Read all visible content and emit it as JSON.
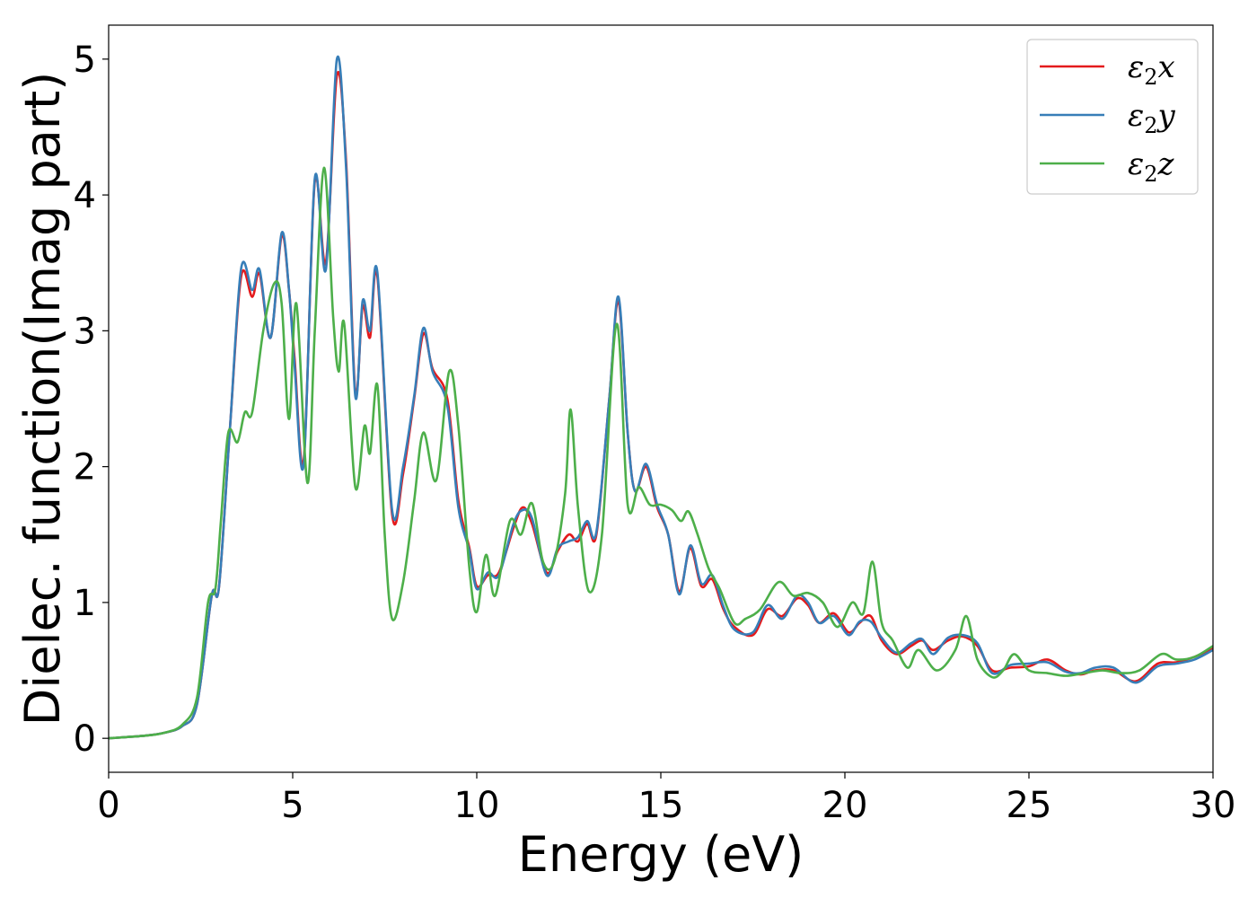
{
  "chart_data": {
    "type": "line",
    "title": "",
    "xlabel": "Energy (eV)",
    "ylabel": "Dielec. function(Imag part)",
    "xlim": [
      0,
      30
    ],
    "ylim": [
      -0.25,
      5.25
    ],
    "xticks": [
      0,
      5,
      10,
      15,
      20,
      25,
      30
    ],
    "yticks": [
      0,
      1,
      2,
      3,
      4,
      5
    ],
    "grid": false,
    "legend_position": "top-right",
    "series": [
      {
        "name": "ε2x",
        "label_main": "ε",
        "label_sub": "2",
        "label_tail": "x",
        "color": "#e41a1c",
        "points": [
          [
            0,
            0
          ],
          [
            1,
            0.02
          ],
          [
            1.5,
            0.04
          ],
          [
            2,
            0.09
          ],
          [
            2.4,
            0.25
          ],
          [
            2.8,
            1.05
          ],
          [
            3.0,
            1.12
          ],
          [
            3.3,
            2.3
          ],
          [
            3.6,
            3.4
          ],
          [
            3.9,
            3.25
          ],
          [
            4.1,
            3.42
          ],
          [
            4.4,
            2.95
          ],
          [
            4.7,
            3.7
          ],
          [
            4.9,
            3.3
          ],
          [
            5.05,
            2.8
          ],
          [
            5.3,
            2.05
          ],
          [
            5.6,
            4.1
          ],
          [
            5.9,
            3.5
          ],
          [
            6.2,
            4.88
          ],
          [
            6.45,
            4.25
          ],
          [
            6.7,
            2.55
          ],
          [
            6.9,
            3.18
          ],
          [
            7.1,
            2.95
          ],
          [
            7.3,
            3.4
          ],
          [
            7.7,
            1.65
          ],
          [
            8.0,
            1.95
          ],
          [
            8.3,
            2.5
          ],
          [
            8.55,
            2.98
          ],
          [
            8.8,
            2.72
          ],
          [
            9.2,
            2.5
          ],
          [
            9.5,
            1.75
          ],
          [
            9.8,
            1.4
          ],
          [
            10.0,
            1.12
          ],
          [
            10.3,
            1.2
          ],
          [
            10.6,
            1.22
          ],
          [
            11.0,
            1.55
          ],
          [
            11.25,
            1.7
          ],
          [
            11.5,
            1.58
          ],
          [
            11.9,
            1.22
          ],
          [
            12.2,
            1.38
          ],
          [
            12.5,
            1.5
          ],
          [
            12.75,
            1.45
          ],
          [
            13.0,
            1.58
          ],
          [
            13.25,
            1.5
          ],
          [
            13.6,
            2.5
          ],
          [
            13.85,
            3.22
          ],
          [
            14.1,
            2.25
          ],
          [
            14.3,
            1.82
          ],
          [
            14.6,
            2.0
          ],
          [
            14.9,
            1.7
          ],
          [
            15.2,
            1.5
          ],
          [
            15.5,
            1.08
          ],
          [
            15.8,
            1.4
          ],
          [
            16.1,
            1.12
          ],
          [
            16.4,
            1.17
          ],
          [
            16.7,
            0.95
          ],
          [
            17.0,
            0.82
          ],
          [
            17.5,
            0.76
          ],
          [
            17.9,
            0.95
          ],
          [
            18.3,
            0.9
          ],
          [
            18.7,
            1.03
          ],
          [
            19.0,
            0.98
          ],
          [
            19.3,
            0.85
          ],
          [
            19.7,
            0.92
          ],
          [
            20.1,
            0.78
          ],
          [
            20.4,
            0.85
          ],
          [
            20.7,
            0.9
          ],
          [
            21.0,
            0.72
          ],
          [
            21.4,
            0.62
          ],
          [
            21.8,
            0.68
          ],
          [
            22.1,
            0.72
          ],
          [
            22.4,
            0.65
          ],
          [
            22.8,
            0.72
          ],
          [
            23.2,
            0.75
          ],
          [
            23.6,
            0.68
          ],
          [
            24.0,
            0.5
          ],
          [
            24.5,
            0.52
          ],
          [
            25.0,
            0.53
          ],
          [
            25.5,
            0.58
          ],
          [
            26.0,
            0.5
          ],
          [
            26.4,
            0.47
          ],
          [
            26.8,
            0.5
          ],
          [
            27.3,
            0.5
          ],
          [
            27.9,
            0.42
          ],
          [
            28.5,
            0.55
          ],
          [
            29.0,
            0.56
          ],
          [
            29.5,
            0.6
          ],
          [
            30,
            0.66
          ]
        ]
      },
      {
        "name": "ε2y",
        "label_main": "ε",
        "label_sub": "2",
        "label_tail": "y",
        "color": "#377eb8",
        "points": [
          [
            0,
            0
          ],
          [
            1,
            0.02
          ],
          [
            1.5,
            0.04
          ],
          [
            2,
            0.09
          ],
          [
            2.4,
            0.25
          ],
          [
            2.8,
            1.05
          ],
          [
            3.0,
            1.12
          ],
          [
            3.3,
            2.3
          ],
          [
            3.6,
            3.46
          ],
          [
            3.9,
            3.3
          ],
          [
            4.1,
            3.45
          ],
          [
            4.4,
            2.95
          ],
          [
            4.7,
            3.72
          ],
          [
            4.9,
            3.3
          ],
          [
            5.05,
            2.75
          ],
          [
            5.3,
            2.02
          ],
          [
            5.6,
            4.12
          ],
          [
            5.9,
            3.45
          ],
          [
            6.2,
            5.0
          ],
          [
            6.45,
            4.2
          ],
          [
            6.7,
            2.52
          ],
          [
            6.9,
            3.22
          ],
          [
            7.1,
            3.0
          ],
          [
            7.3,
            3.43
          ],
          [
            7.7,
            1.68
          ],
          [
            8.0,
            2.0
          ],
          [
            8.3,
            2.52
          ],
          [
            8.55,
            3.02
          ],
          [
            8.8,
            2.7
          ],
          [
            9.2,
            2.45
          ],
          [
            9.5,
            1.7
          ],
          [
            9.8,
            1.38
          ],
          [
            10.0,
            1.1
          ],
          [
            10.3,
            1.22
          ],
          [
            10.6,
            1.2
          ],
          [
            11.0,
            1.58
          ],
          [
            11.25,
            1.68
          ],
          [
            11.5,
            1.62
          ],
          [
            11.9,
            1.2
          ],
          [
            12.2,
            1.4
          ],
          [
            12.5,
            1.45
          ],
          [
            12.75,
            1.48
          ],
          [
            13.0,
            1.6
          ],
          [
            13.25,
            1.52
          ],
          [
            13.6,
            2.5
          ],
          [
            13.85,
            3.25
          ],
          [
            14.1,
            2.25
          ],
          [
            14.3,
            1.82
          ],
          [
            14.6,
            2.02
          ],
          [
            14.9,
            1.72
          ],
          [
            15.2,
            1.5
          ],
          [
            15.5,
            1.06
          ],
          [
            15.8,
            1.42
          ],
          [
            16.1,
            1.14
          ],
          [
            16.4,
            1.2
          ],
          [
            16.7,
            0.97
          ],
          [
            17.0,
            0.8
          ],
          [
            17.5,
            0.78
          ],
          [
            17.9,
            0.98
          ],
          [
            18.3,
            0.88
          ],
          [
            18.7,
            1.05
          ],
          [
            19.0,
            1.0
          ],
          [
            19.3,
            0.85
          ],
          [
            19.7,
            0.9
          ],
          [
            20.1,
            0.76
          ],
          [
            20.4,
            0.86
          ],
          [
            20.7,
            0.86
          ],
          [
            21.0,
            0.74
          ],
          [
            21.4,
            0.63
          ],
          [
            21.8,
            0.7
          ],
          [
            22.1,
            0.73
          ],
          [
            22.4,
            0.62
          ],
          [
            22.8,
            0.74
          ],
          [
            23.2,
            0.76
          ],
          [
            23.6,
            0.7
          ],
          [
            24.0,
            0.48
          ],
          [
            24.5,
            0.54
          ],
          [
            25.0,
            0.55
          ],
          [
            25.5,
            0.56
          ],
          [
            26.0,
            0.49
          ],
          [
            26.4,
            0.48
          ],
          [
            26.8,
            0.52
          ],
          [
            27.3,
            0.52
          ],
          [
            27.9,
            0.41
          ],
          [
            28.5,
            0.53
          ],
          [
            29.0,
            0.55
          ],
          [
            29.5,
            0.58
          ],
          [
            30,
            0.65
          ]
        ]
      },
      {
        "name": "ε2z",
        "label_main": "ε",
        "label_sub": "2",
        "label_tail": "z",
        "color": "#4daf4a",
        "points": [
          [
            0,
            0
          ],
          [
            1,
            0.02
          ],
          [
            1.5,
            0.04
          ],
          [
            2,
            0.1
          ],
          [
            2.4,
            0.3
          ],
          [
            2.7,
            1.0
          ],
          [
            2.9,
            1.1
          ],
          [
            3.05,
            1.6
          ],
          [
            3.25,
            2.25
          ],
          [
            3.5,
            2.18
          ],
          [
            3.7,
            2.4
          ],
          [
            3.9,
            2.4
          ],
          [
            4.2,
            3.0
          ],
          [
            4.5,
            3.35
          ],
          [
            4.7,
            3.2
          ],
          [
            4.9,
            2.35
          ],
          [
            5.1,
            3.2
          ],
          [
            5.4,
            1.88
          ],
          [
            5.6,
            3.0
          ],
          [
            5.85,
            4.2
          ],
          [
            6.1,
            3.1
          ],
          [
            6.25,
            2.7
          ],
          [
            6.4,
            3.05
          ],
          [
            6.7,
            1.85
          ],
          [
            6.95,
            2.3
          ],
          [
            7.1,
            2.1
          ],
          [
            7.3,
            2.6
          ],
          [
            7.5,
            1.5
          ],
          [
            7.7,
            0.88
          ],
          [
            8.0,
            1.15
          ],
          [
            8.3,
            1.75
          ],
          [
            8.55,
            2.25
          ],
          [
            8.9,
            1.9
          ],
          [
            9.25,
            2.7
          ],
          [
            9.5,
            2.3
          ],
          [
            9.8,
            1.25
          ],
          [
            10.0,
            0.93
          ],
          [
            10.25,
            1.35
          ],
          [
            10.5,
            1.05
          ],
          [
            10.9,
            1.6
          ],
          [
            11.2,
            1.5
          ],
          [
            11.5,
            1.73
          ],
          [
            11.8,
            1.3
          ],
          [
            12.1,
            1.3
          ],
          [
            12.4,
            1.8
          ],
          [
            12.55,
            2.42
          ],
          [
            12.75,
            1.7
          ],
          [
            13.05,
            1.08
          ],
          [
            13.4,
            1.5
          ],
          [
            13.8,
            3.05
          ],
          [
            14.1,
            1.72
          ],
          [
            14.4,
            1.85
          ],
          [
            14.7,
            1.72
          ],
          [
            15.0,
            1.72
          ],
          [
            15.3,
            1.68
          ],
          [
            15.55,
            1.6
          ],
          [
            15.75,
            1.67
          ],
          [
            16.0,
            1.5
          ],
          [
            16.3,
            1.25
          ],
          [
            16.6,
            1.1
          ],
          [
            17.0,
            0.85
          ],
          [
            17.3,
            0.88
          ],
          [
            17.7,
            0.95
          ],
          [
            18.2,
            1.15
          ],
          [
            18.6,
            1.05
          ],
          [
            19.0,
            1.07
          ],
          [
            19.4,
            1.0
          ],
          [
            19.8,
            0.82
          ],
          [
            20.2,
            1.0
          ],
          [
            20.5,
            0.92
          ],
          [
            20.75,
            1.3
          ],
          [
            21.0,
            0.85
          ],
          [
            21.3,
            0.72
          ],
          [
            21.7,
            0.52
          ],
          [
            22.0,
            0.65
          ],
          [
            22.5,
            0.5
          ],
          [
            23.0,
            0.65
          ],
          [
            23.3,
            0.9
          ],
          [
            23.6,
            0.58
          ],
          [
            24.0,
            0.45
          ],
          [
            24.3,
            0.5
          ],
          [
            24.6,
            0.62
          ],
          [
            25.0,
            0.5
          ],
          [
            25.5,
            0.48
          ],
          [
            26.0,
            0.46
          ],
          [
            26.5,
            0.48
          ],
          [
            27.0,
            0.5
          ],
          [
            27.5,
            0.48
          ],
          [
            28.0,
            0.5
          ],
          [
            28.6,
            0.62
          ],
          [
            29.0,
            0.58
          ],
          [
            29.5,
            0.6
          ],
          [
            30,
            0.68
          ]
        ]
      }
    ]
  }
}
